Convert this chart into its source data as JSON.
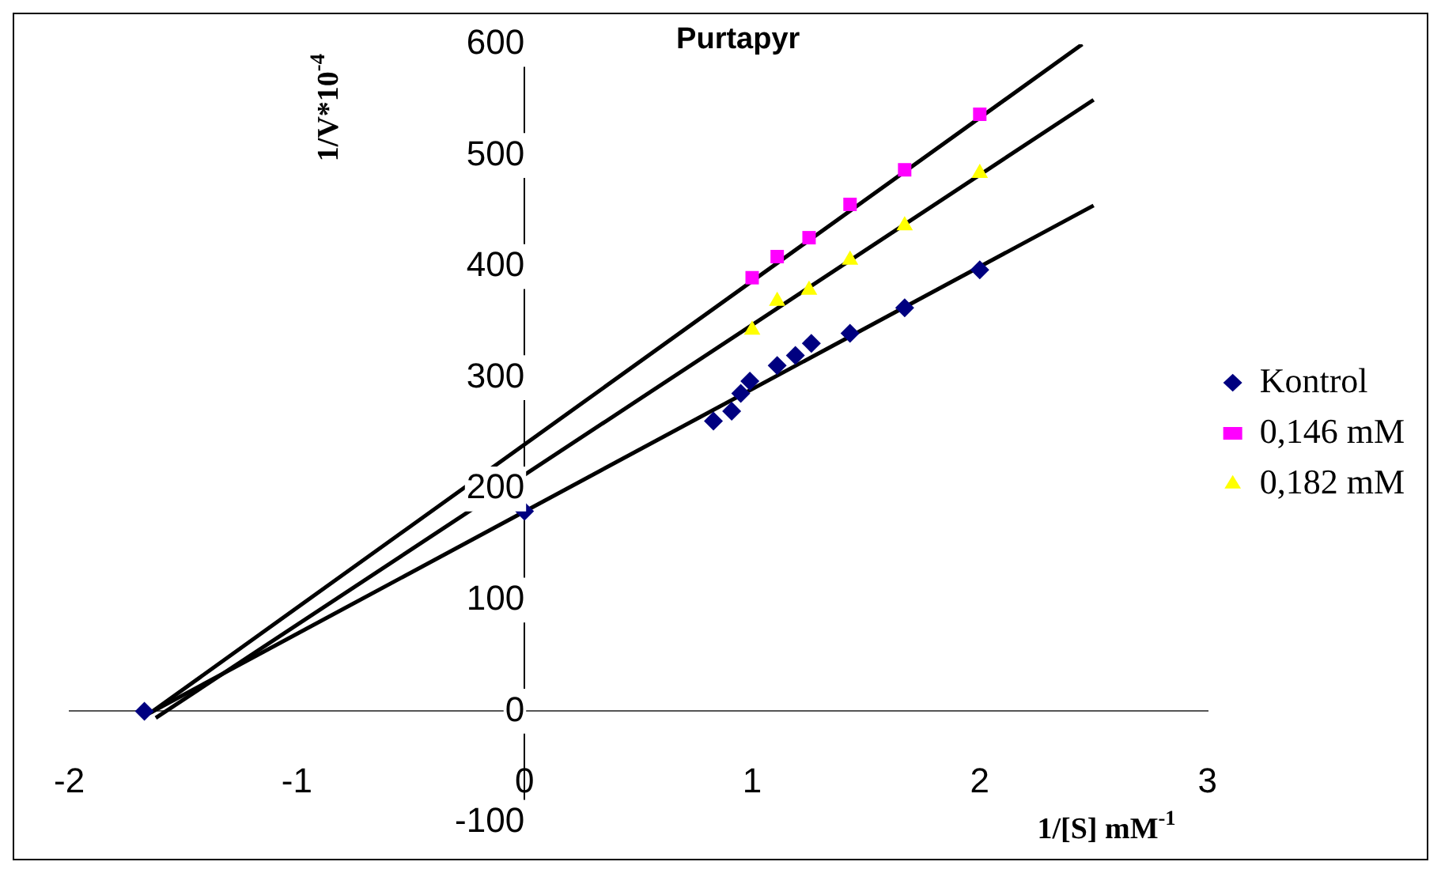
{
  "chart_data": {
    "type": "scatter",
    "title": "Purtapyr",
    "xlabel": "1/[S] mM$^{-1}$",
    "ylabel": "1/V*10$^{-4}$",
    "xlim": [
      -2,
      3
    ],
    "ylim": [
      -100,
      600
    ],
    "xticks": [
      -2,
      -1,
      0,
      1,
      2,
      3
    ],
    "yticks": [
      -100,
      0,
      100,
      200,
      300,
      400,
      500,
      600
    ],
    "grid": false,
    "legend": "right",
    "series": [
      {
        "name": "Kontrol",
        "color": "#000080",
        "marker": "diamond",
        "x": [
          -1.67,
          0,
          0.83,
          0.91,
          0.95,
          0.99,
          1.11,
          1.19,
          1.26,
          1.43,
          1.67,
          2
        ],
        "values": [
          0,
          180,
          261,
          270,
          286,
          297,
          311,
          320,
          331,
          340,
          363,
          397
        ]
      },
      {
        "name": "0,146 mM",
        "color": "#ff00ff",
        "marker": "square",
        "x": [
          1,
          1.11,
          1.25,
          1.43,
          1.67,
          2
        ],
        "values": [
          390,
          409,
          426,
          456,
          487,
          537
        ]
      },
      {
        "name": "0,182 mM",
        "color": "#ffff00",
        "marker": "triangle",
        "x": [
          1,
          1.11,
          1.25,
          1.43,
          1.67,
          2
        ],
        "values": [
          343,
          369,
          379,
          406,
          437,
          484
        ]
      },
      {
        "type": "line",
        "color": "#000000",
        "marker": "none",
        "x": [
          -1.65,
          2.5
        ],
        "values": [
          -2,
          455
        ]
      },
      {
        "type": "line",
        "color": "#000000",
        "marker": "none",
        "x": [
          -1.64,
          2.45
        ],
        "values": [
          -1,
          600
        ]
      },
      {
        "type": "line",
        "color": "#000000",
        "marker": "none",
        "x": [
          -1.62,
          2.5
        ],
        "values": [
          -6,
          550
        ]
      }
    ]
  }
}
